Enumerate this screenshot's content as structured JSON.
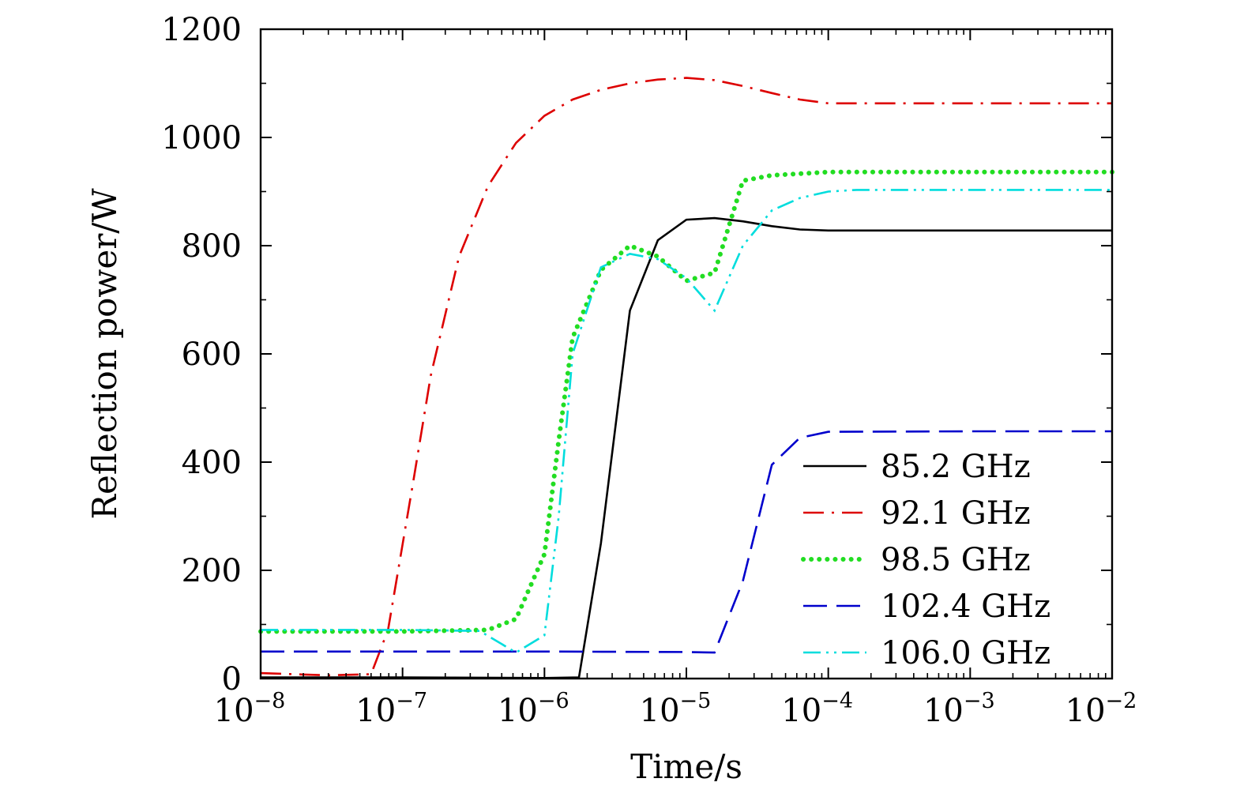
{
  "chart_data": {
    "type": "line",
    "title": "",
    "xlabel": "Time/s",
    "ylabel": "Reflection power/W",
    "x_scale": "log",
    "xlim": [
      1e-08,
      0.01
    ],
    "ylim": [
      0,
      1200
    ],
    "grid": false,
    "legend_position": "bottom-right",
    "x_ticks": [
      {
        "base": "10",
        "exp": "−8"
      },
      {
        "base": "10",
        "exp": "−7"
      },
      {
        "base": "10",
        "exp": "−6"
      },
      {
        "base": "10",
        "exp": "−5"
      },
      {
        "base": "10",
        "exp": "−4"
      },
      {
        "base": "10",
        "exp": "−3"
      },
      {
        "base": "10",
        "exp": "−2"
      }
    ],
    "y_ticks": [
      "0",
      "200",
      "400",
      "600",
      "800",
      "1000",
      "1200"
    ],
    "series": [
      {
        "name": "85.2 GHz",
        "color": "#000000",
        "style": "solid",
        "points": [
          [
            1e-08,
            2
          ],
          [
            1e-07,
            2
          ],
          [
            1e-06,
            1
          ],
          [
            1.75e-06,
            2
          ],
          [
            2.5e-06,
            250
          ],
          [
            4e-06,
            680
          ],
          [
            6.3e-06,
            810
          ],
          [
            1e-05,
            848
          ],
          [
            1.58e-05,
            851
          ],
          [
            2.5e-05,
            845
          ],
          [
            4e-05,
            836
          ],
          [
            6.3e-05,
            830
          ],
          [
            0.0001,
            828
          ],
          [
            0.001,
            828
          ],
          [
            0.01,
            828
          ]
        ]
      },
      {
        "name": "92.1 GHz",
        "color": "#dd0000",
        "style": "dashdot",
        "points": [
          [
            1e-08,
            10
          ],
          [
            3e-08,
            6
          ],
          [
            6e-08,
            8
          ],
          [
            7.9e-08,
            90
          ],
          [
            1.2e-07,
            370
          ],
          [
            1.58e-07,
            560
          ],
          [
            2.5e-07,
            780
          ],
          [
            4e-07,
            910
          ],
          [
            6.3e-07,
            990
          ],
          [
            1e-06,
            1040
          ],
          [
            1.58e-06,
            1070
          ],
          [
            2.5e-06,
            1088
          ],
          [
            4e-06,
            1100
          ],
          [
            6.3e-06,
            1107
          ],
          [
            1e-05,
            1110
          ],
          [
            1.58e-05,
            1106
          ],
          [
            2.5e-05,
            1095
          ],
          [
            4e-05,
            1082
          ],
          [
            6.3e-05,
            1070
          ],
          [
            0.0001,
            1063
          ],
          [
            0.001,
            1063
          ],
          [
            0.01,
            1063
          ]
        ]
      },
      {
        "name": "98.5 GHz",
        "color": "#22dd22",
        "style": "dotted",
        "points": [
          [
            1e-08,
            87
          ],
          [
            1e-07,
            87
          ],
          [
            4e-07,
            90
          ],
          [
            6.3e-07,
            110
          ],
          [
            1e-06,
            230
          ],
          [
            1.26e-06,
            440
          ],
          [
            1.58e-06,
            630
          ],
          [
            2.5e-06,
            755
          ],
          [
            4e-06,
            800
          ],
          [
            6.3e-06,
            780
          ],
          [
            1e-05,
            735
          ],
          [
            1.58e-05,
            750
          ],
          [
            2.5e-05,
            920
          ],
          [
            4e-05,
            930
          ],
          [
            0.0001,
            936
          ],
          [
            0.01,
            936
          ]
        ]
      },
      {
        "name": "102.4 GHz",
        "color": "#0000cc",
        "style": "longdash",
        "points": [
          [
            1e-08,
            50
          ],
          [
            1e-07,
            50
          ],
          [
            1e-06,
            50
          ],
          [
            1e-05,
            49
          ],
          [
            1.58e-05,
            48
          ],
          [
            2.5e-05,
            180
          ],
          [
            4e-05,
            395
          ],
          [
            6.3e-05,
            445
          ],
          [
            0.0001,
            456
          ],
          [
            0.001,
            457
          ],
          [
            0.01,
            457
          ]
        ]
      },
      {
        "name": "106.0 GHz",
        "color": "#00dddd",
        "style": "dashdotdot",
        "points": [
          [
            1e-08,
            90
          ],
          [
            1e-07,
            90
          ],
          [
            3.5e-07,
            88
          ],
          [
            6.3e-07,
            48
          ],
          [
            1e-06,
            80
          ],
          [
            1.26e-06,
            300
          ],
          [
            1.58e-06,
            600
          ],
          [
            2.5e-06,
            760
          ],
          [
            4e-06,
            785
          ],
          [
            6.3e-06,
            775
          ],
          [
            1e-05,
            740
          ],
          [
            1.58e-05,
            680
          ],
          [
            2.5e-05,
            800
          ],
          [
            4e-05,
            865
          ],
          [
            6.3e-05,
            888
          ],
          [
            0.0001,
            900
          ],
          [
            0.000158,
            903
          ],
          [
            0.01,
            903
          ]
        ]
      }
    ]
  }
}
